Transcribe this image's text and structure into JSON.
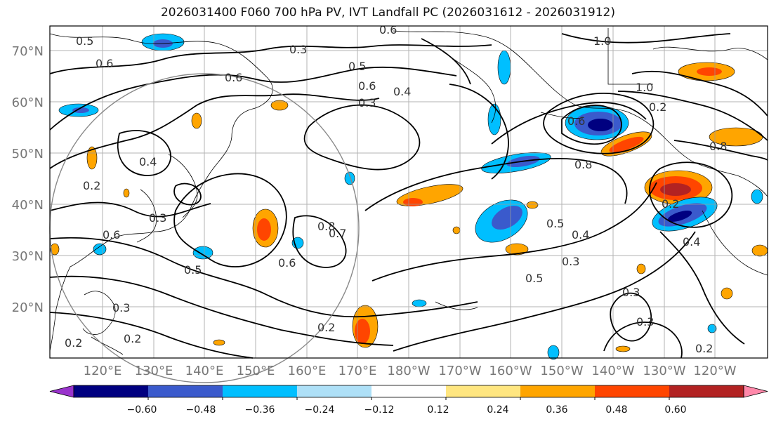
{
  "title": "2026031400 F060 700 hPa PV, IVT Landfall PC (2026031612 - 2026031912)",
  "lon_labels": [
    "120°E",
    "130°E",
    "140°E",
    "150°E",
    "160°E",
    "170°E",
    "180°W",
    "170°W",
    "160°W",
    "150°W",
    "140°W",
    "130°W",
    "120°W"
  ],
  "lat_labels": [
    "70°N",
    "60°N",
    "50°N",
    "40°N",
    "30°N",
    "20°N"
  ],
  "colorbar": {
    "ticks": [
      "−0.60",
      "−0.48",
      "−0.36",
      "−0.24",
      "−0.12",
      "0.12",
      "0.24",
      "0.36",
      "0.48",
      "0.60"
    ],
    "colors": [
      "#9933cc",
      "#000080",
      "#3a5acc",
      "#00bfff",
      "#aee0f7",
      "#ffffff",
      "#ffe680",
      "#ffa500",
      "#ff4500",
      "#b22222",
      "#ff88aa"
    ]
  },
  "contour_labels": [
    "0.6",
    "0.5",
    "0.3",
    "0.6",
    "0.5",
    "0.6",
    "0.4",
    "0.3",
    "1.0",
    "1.0",
    "0.6",
    "0.2",
    "0.8",
    "0.8",
    "0.5",
    "0.4",
    "0.3",
    "0.5",
    "0.6",
    "0.8",
    "0.7",
    "0.3",
    "0.6",
    "0.5",
    "0.3",
    "0.2",
    "0.2",
    "0.2",
    "0.2",
    "0.4",
    "0.3",
    "0.2",
    "0.4",
    "0.2",
    "0.3",
    "0.6"
  ]
}
